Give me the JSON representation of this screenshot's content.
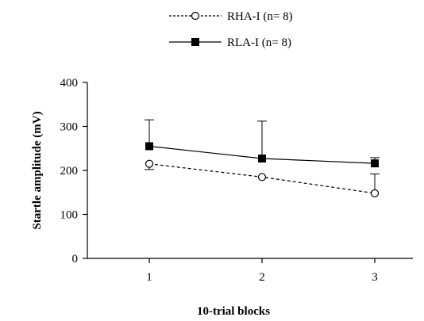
{
  "chart_data": {
    "type": "line",
    "title": "",
    "xlabel": "10-trial blocks",
    "ylabel": "Startle amplitude (mV)",
    "x": [
      1,
      2,
      3
    ],
    "x_tick_labels": [
      "1",
      "2",
      "3"
    ],
    "ylim": [
      0,
      400
    ],
    "y_ticks": [
      0,
      100,
      200,
      300,
      400
    ],
    "y_tick_labels": [
      "0",
      "100",
      "200",
      "300",
      "400"
    ],
    "grid": false,
    "legend_position": "top-center",
    "series": [
      {
        "name": "RHA-I (n= 8)",
        "values": [
          215,
          185,
          148
        ],
        "error_lower": [
          13,
          0,
          0
        ],
        "error_upper": [
          0,
          0,
          44
        ],
        "line_style": "dashed",
        "marker": "open-circle",
        "color": "#000000"
      },
      {
        "name": "RLA-I (n= 8)",
        "values": [
          255,
          227,
          216
        ],
        "error_lower": [
          0,
          0,
          0
        ],
        "error_upper": [
          60,
          85,
          13
        ],
        "line_style": "solid",
        "marker": "filled-square",
        "color": "#000000"
      }
    ]
  }
}
